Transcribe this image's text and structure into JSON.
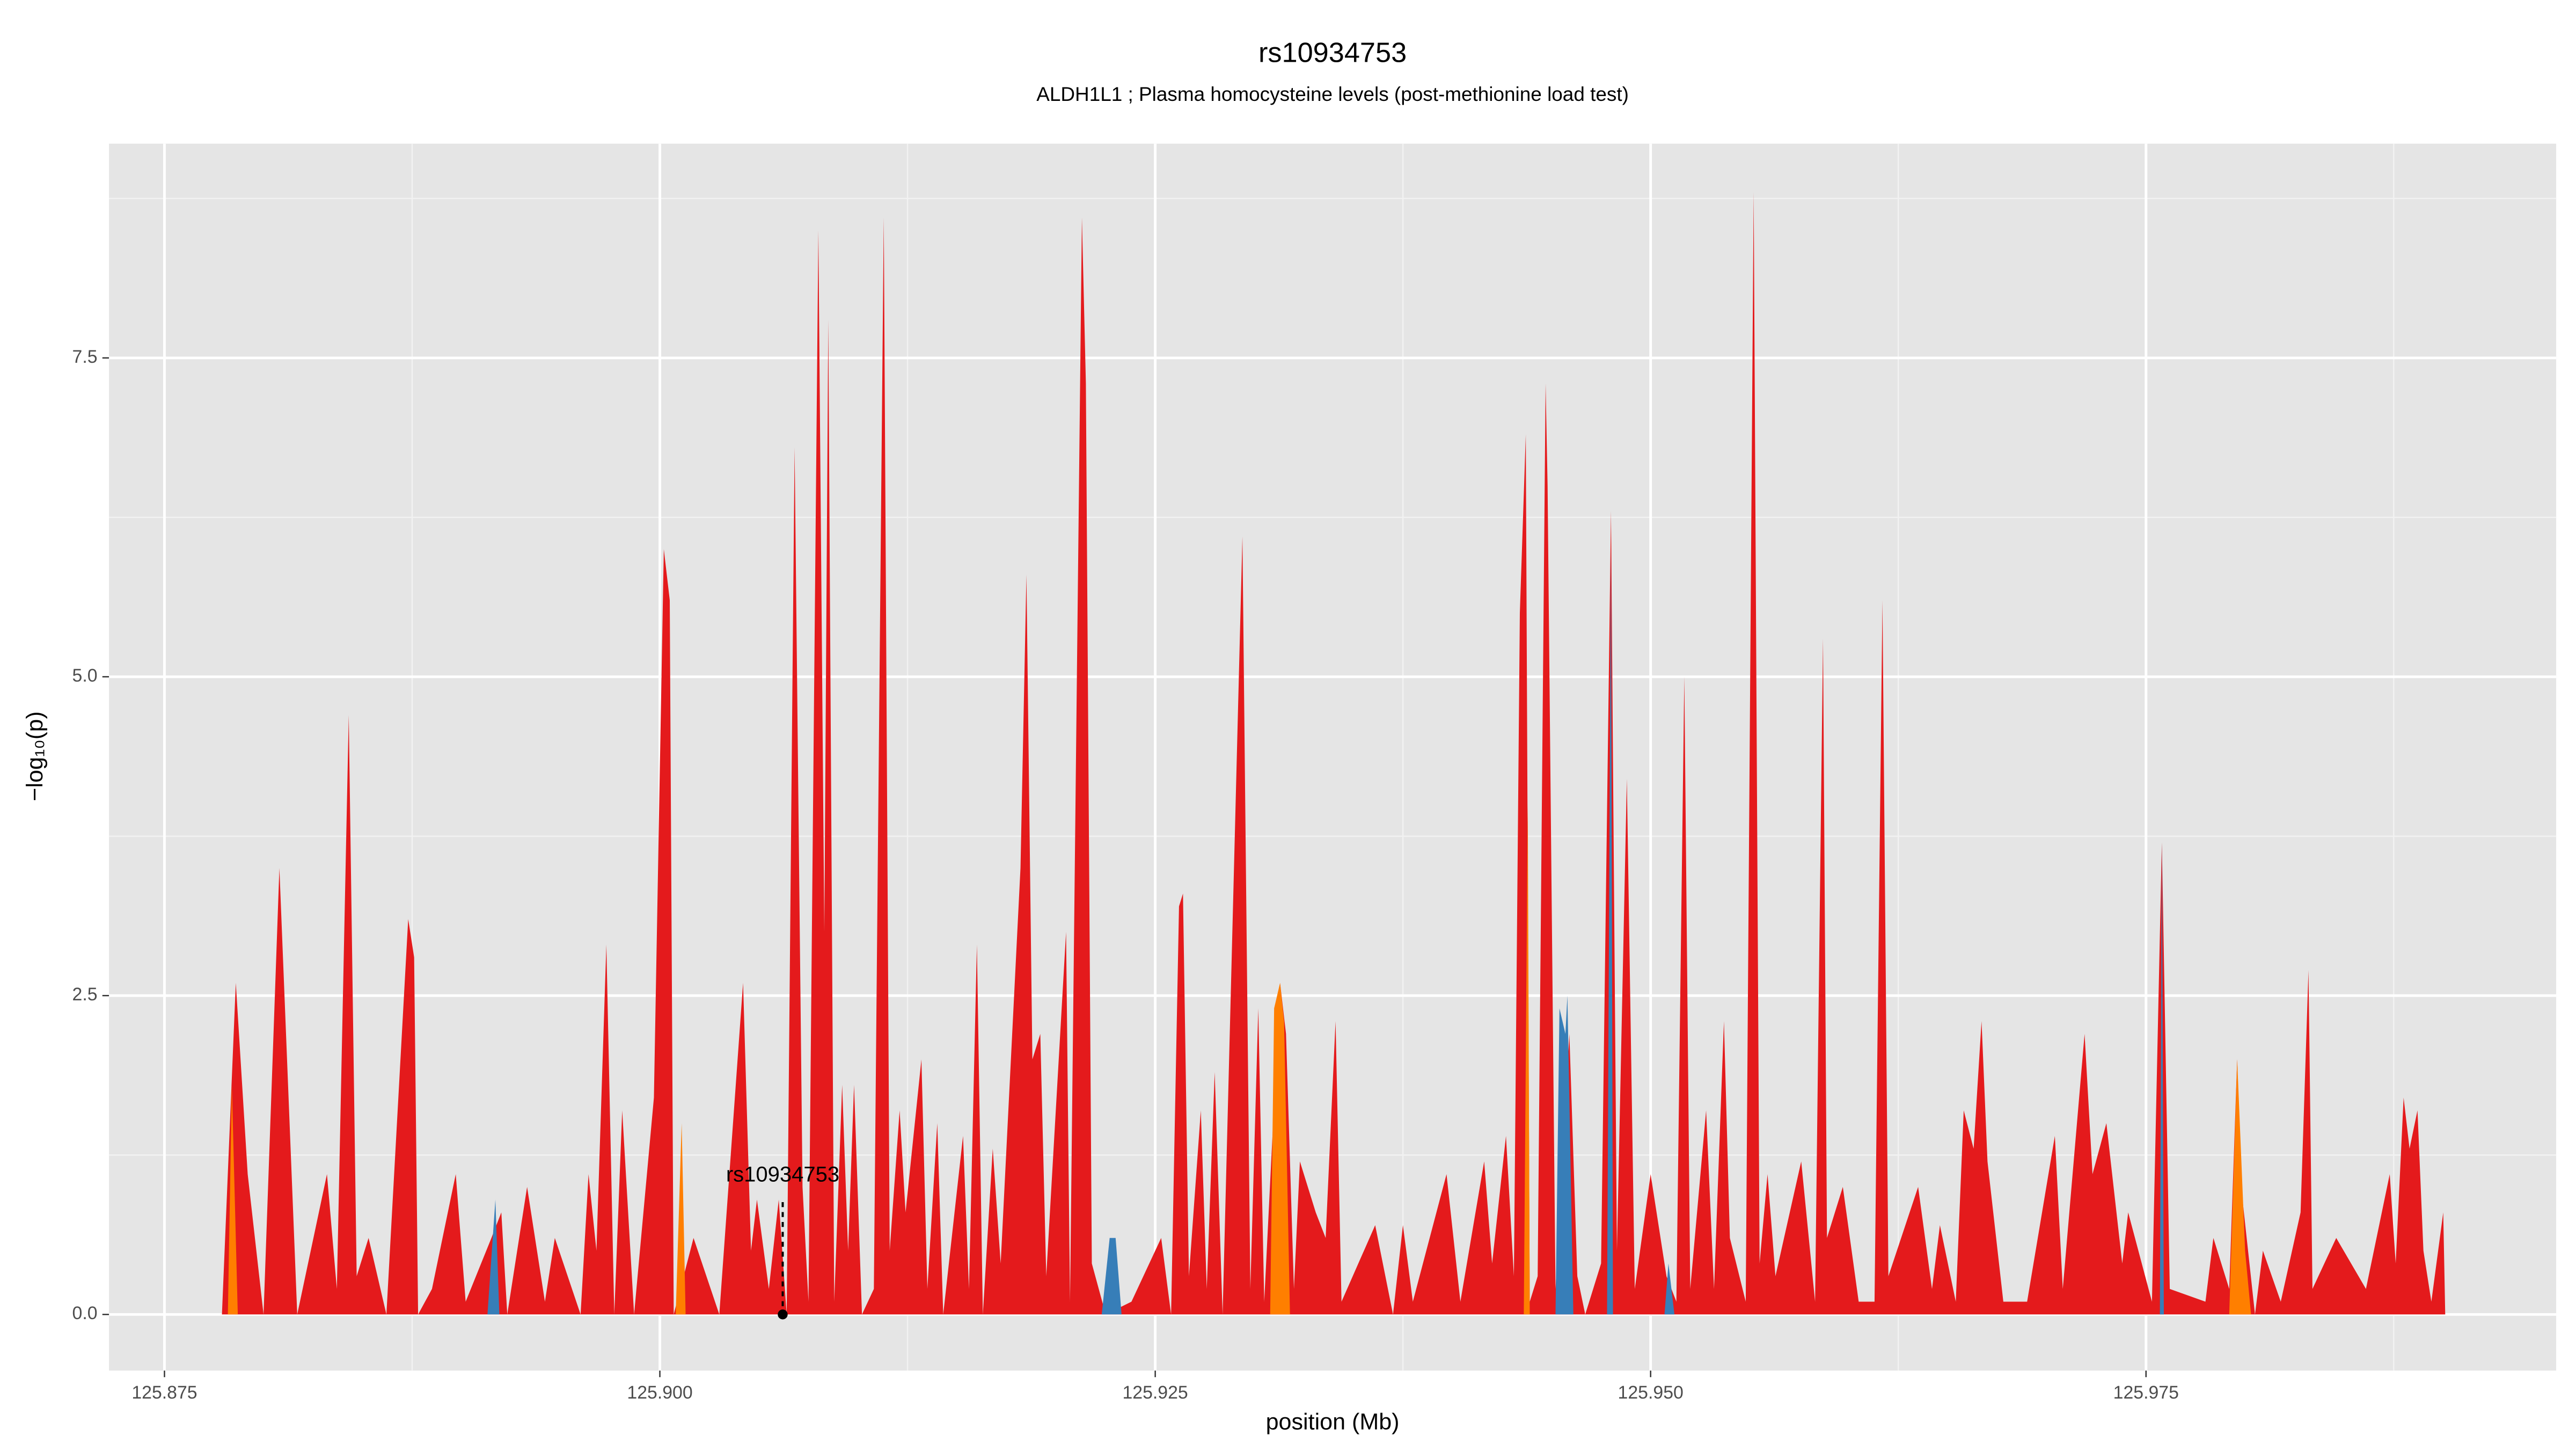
{
  "chart_data": {
    "type": "area",
    "title": "rs10934753",
    "subtitle": "ALDH1L1 ; Plasma homocysteine levels (post-methionine load test)",
    "x_label": "position (Mb)",
    "y_label": "−log₁₀(p)",
    "xlim": [
      125.8722,
      125.9957
    ],
    "ylim": [
      -0.44,
      9.18
    ],
    "xticks": [
      125.875,
      {
        "value": 125.9,
        "label": "125.900"
      },
      125.925,
      {
        "value": 125.95,
        "label": "125.950"
      },
      125.975
    ],
    "yticks": [
      {
        "value": 0,
        "label": "0.0"
      },
      2.5,
      {
        "value": 5,
        "label": "5.0"
      },
      7.5
    ],
    "grid": true,
    "annotation": {
      "text": "rs10934753",
      "x": 125.9062
    },
    "series": [
      {
        "color": "#e41a1c",
        "x": [
          125.8779,
          125.8786,
          125.8792,
          125.88,
          125.8808,
          125.8817,
          125.8832,
          125.8837,
          125.8843,
          125.8847,
          125.8853,
          125.8862,
          125.8873,
          125.8876,
          125.8878,
          125.8885,
          125.8897,
          125.8902,
          125.8915,
          125.892,
          125.8923,
          125.8933,
          125.8942,
          125.8947,
          125.896,
          125.8964,
          125.8968,
          125.8973,
          125.8977,
          125.8981,
          125.8987,
          125.8997,
          125.9002,
          125.9005,
          125.9007,
          125.9017,
          125.903,
          125.9042,
          125.9046,
          125.9049,
          125.9055,
          125.906,
          125.9064,
          125.9068,
          125.9072,
          125.9075,
          125.908,
          125.9083,
          125.9085,
          125.9088,
          125.9092,
          125.9095,
          125.9098,
          125.9102,
          125.9108,
          125.9113,
          125.9116,
          125.9121,
          125.9124,
          125.9132,
          125.9135,
          125.914,
          125.9143,
          125.9153,
          125.9156,
          125.916,
          125.9163,
          125.9168,
          125.9172,
          125.9182,
          125.9185,
          125.9188,
          125.9192,
          125.9195,
          125.9205,
          125.9207,
          125.9213,
          125.9215,
          125.9218,
          125.9225,
          125.9238,
          125.9253,
          125.9258,
          125.9262,
          125.9264,
          125.9267,
          125.9273,
          125.9276,
          125.928,
          125.9284,
          125.9294,
          125.9298,
          125.9302,
          125.9305,
          125.9313,
          125.9316,
          125.932,
          125.9323,
          125.9331,
          125.9336,
          125.9341,
          125.9344,
          125.9361,
          125.937,
          125.9375,
          125.938,
          125.9397,
          125.9404,
          125.9416,
          125.942,
          125.9427,
          125.9431,
          125.9434,
          125.9437,
          125.9439,
          125.9443,
          125.9447,
          125.9448,
          125.9452,
          125.9459,
          125.9463,
          125.9467,
          125.9475,
          125.948,
          125.9483,
          125.9488,
          125.9492,
          125.95,
          125.9508,
          125.9513,
          125.9517,
          125.952,
          125.9528,
          125.9532,
          125.9537,
          125.954,
          125.9548,
          125.9552,
          125.9555,
          125.9559,
          125.9563,
          125.9576,
          125.9583,
          125.9587,
          125.9589,
          125.9597,
          125.9605,
          125.9613,
          125.9617,
          125.962,
          125.9635,
          125.9642,
          125.9646,
          125.9654,
          125.9658,
          125.9663,
          125.9667,
          125.967,
          125.9678,
          125.969,
          125.9704,
          125.9708,
          125.9719,
          125.9723,
          125.973,
          125.9738,
          125.9741,
          125.9753,
          125.9758,
          125.9762,
          125.978,
          125.9784,
          125.9792,
          125.9796,
          125.9798,
          125.9805,
          125.9809,
          125.9818,
          125.9828,
          125.9832,
          125.9834,
          125.9846,
          125.9861,
          125.9873,
          125.9876,
          125.988,
          125.9883,
          125.9887,
          125.989,
          125.9894,
          125.99,
          125.9901
        ],
        "values": [
          0,
          2.6,
          1.1,
          0,
          3.5,
          0,
          1.1,
          0.2,
          4.7,
          0.3,
          0.6,
          0,
          3.1,
          2.8,
          0,
          0.2,
          1.1,
          0.1,
          0.6,
          0.8,
          0,
          1.0,
          0.1,
          0.6,
          0,
          1.1,
          0.5,
          2.9,
          0,
          1.6,
          0,
          1.7,
          6.0,
          5.6,
          0,
          0.6,
          0,
          2.6,
          0.5,
          0.9,
          0.2,
          0.9,
          0,
          6.8,
          1.0,
          0.1,
          8.5,
          3.0,
          7.8,
          0.1,
          1.8,
          0.5,
          1.8,
          0,
          0.2,
          8.6,
          0.5,
          1.6,
          0.8,
          2.0,
          0.2,
          1.5,
          0,
          1.4,
          0.2,
          2.9,
          0,
          1.3,
          0.4,
          3.5,
          5.8,
          2.0,
          2.2,
          0.3,
          3.0,
          0.1,
          8.6,
          7.3,
          0.4,
          0,
          0.1,
          0.6,
          0,
          3.2,
          3.3,
          0.3,
          1.6,
          0.2,
          1.9,
          0,
          6.1,
          0.2,
          2.4,
          0.1,
          2.6,
          2.2,
          0.2,
          1.2,
          0.8,
          0.6,
          2.3,
          0.1,
          0.7,
          0,
          0.7,
          0.1,
          1.1,
          0.1,
          1.2,
          0.4,
          1.4,
          0.3,
          5.5,
          6.9,
          0.1,
          0.3,
          7.3,
          6.5,
          0.2,
          2.2,
          0.3,
          0,
          0.4,
          6.3,
          0.5,
          4.2,
          0.2,
          1.1,
          0.3,
          0.1,
          5.0,
          0.2,
          1.6,
          0.2,
          2.3,
          0.6,
          0.1,
          8.8,
          0.4,
          1.1,
          0.3,
          1.2,
          0.1,
          5.3,
          0.6,
          1.0,
          0.1,
          0.1,
          5.6,
          0.3,
          1.0,
          0.2,
          0.7,
          0.1,
          1.6,
          1.3,
          2.3,
          1.2,
          0.1,
          0.1,
          1.4,
          0.2,
          2.2,
          1.1,
          1.5,
          0.4,
          0.8,
          0.1,
          3.7,
          0.2,
          0.1,
          0.6,
          0.2,
          2.0,
          1.0,
          0,
          0.5,
          0.1,
          0.8,
          2.7,
          0.2,
          0.6,
          0.2,
          1.1,
          0.4,
          1.7,
          1.3,
          1.6,
          0.5,
          0.1,
          0.8,
          0
        ]
      },
      {
        "color": "#377eb8",
        "x": [
          125.8913,
          125.8917,
          125.8919
        ],
        "values": [
          0,
          0.9,
          0
        ]
      },
      {
        "color": "#377eb8",
        "x": [
          125.9223,
          125.9227,
          125.923,
          125.9233
        ],
        "values": [
          0,
          0.6,
          0.6,
          0
        ]
      },
      {
        "color": "#377eb8",
        "x": [
          125.9452,
          125.9454,
          125.9457,
          125.9458,
          125.9461
        ],
        "values": [
          0,
          2.4,
          2.2,
          2.5,
          0
        ]
      },
      {
        "color": "#377eb8",
        "x": [
          125.9478,
          125.948,
          125.9481
        ],
        "values": [
          0,
          6.0,
          0
        ]
      },
      {
        "color": "#377eb8",
        "x": [
          125.9507,
          125.9509,
          125.9512
        ],
        "values": [
          0,
          0.4,
          0
        ]
      },
      {
        "color": "#377eb8",
        "x": [
          125.9757,
          125.9758,
          125.9759
        ],
        "values": [
          0,
          3.7,
          0
        ]
      },
      {
        "color": "#ff7f00",
        "x": [
          125.8782,
          125.8784,
          125.8787
        ],
        "values": [
          0,
          1.8,
          0
        ]
      },
      {
        "color": "#ff7f00",
        "x": [
          125.9008,
          125.9011,
          125.9013
        ],
        "values": [
          0,
          1.5,
          0
        ]
      },
      {
        "color": "#ff7f00",
        "x": [
          125.9308,
          125.931,
          125.9313,
          125.9315,
          125.9318
        ],
        "values": [
          0,
          2.4,
          2.6,
          2.3,
          0
        ]
      },
      {
        "color": "#ff7f00",
        "x": [
          125.9436,
          125.9438,
          125.9439
        ],
        "values": [
          0,
          4.0,
          0
        ]
      },
      {
        "color": "#ff7f00",
        "x": [
          125.9792,
          125.9796,
          125.98,
          125.9803
        ],
        "values": [
          0,
          2.0,
          0.5,
          0
        ]
      }
    ]
  }
}
